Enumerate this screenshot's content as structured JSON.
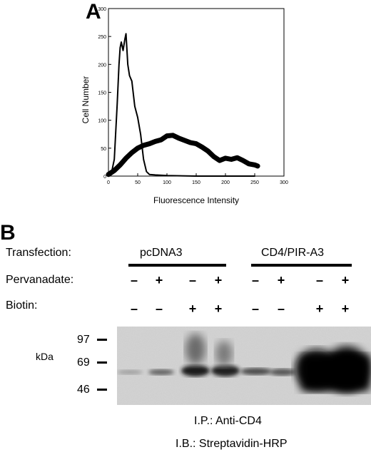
{
  "panel_a": {
    "letter": "A",
    "chart_data": {
      "type": "line",
      "xlabel": "Fluorescence Intensity",
      "ylabel": "Cell Number",
      "xlim": [
        0,
        300
      ],
      "ylim": [
        0,
        300
      ],
      "xticks": [
        "0",
        "50",
        "100",
        "150",
        "200",
        "250",
        "300"
      ],
      "yticks": [
        "0",
        "50",
        "100",
        "150",
        "200",
        "250",
        "300"
      ],
      "grid": false,
      "series": [
        {
          "x": [
            0,
            5,
            10,
            15,
            18,
            20,
            22,
            25,
            28,
            30,
            33,
            36,
            40,
            45,
            50,
            55,
            60,
            65,
            70,
            80,
            100,
            150,
            200,
            250
          ],
          "y": [
            2,
            5,
            30,
            130,
            200,
            230,
            240,
            225,
            245,
            255,
            200,
            180,
            170,
            125,
            105,
            75,
            30,
            8,
            3,
            2,
            1,
            0,
            0,
            0
          ],
          "line_width": "thin"
        },
        {
          "x": [
            0,
            10,
            20,
            30,
            40,
            50,
            60,
            70,
            80,
            90,
            100,
            110,
            120,
            130,
            140,
            150,
            160,
            170,
            180,
            190,
            200,
            210,
            220,
            230,
            240,
            250,
            255
          ],
          "y": [
            3,
            10,
            20,
            32,
            42,
            50,
            55,
            58,
            62,
            65,
            72,
            73,
            68,
            64,
            60,
            58,
            52,
            45,
            35,
            28,
            32,
            30,
            33,
            28,
            22,
            20,
            18
          ],
          "line_width": "thick"
        }
      ]
    }
  },
  "panel_b": {
    "letter": "B",
    "transfection_label": "Transfection:",
    "pervanadate_label": "Pervanadate:",
    "biotin_label": "Biotin:",
    "groups": [
      "pcDNA3",
      "CD4/PIR-A3"
    ],
    "pervanadate_signs": [
      "–",
      "+",
      "–",
      "+",
      "–",
      "+",
      "–",
      "+"
    ],
    "biotin_signs": [
      "–",
      "–",
      "+",
      "+",
      "–",
      "–",
      "+",
      "+"
    ],
    "markers": [
      "97",
      "69",
      "46"
    ],
    "unit": "kDa",
    "caption_ip": "I.P.: Anti-CD4",
    "caption_ib": "I.B.: Streptavidin-HRP"
  }
}
